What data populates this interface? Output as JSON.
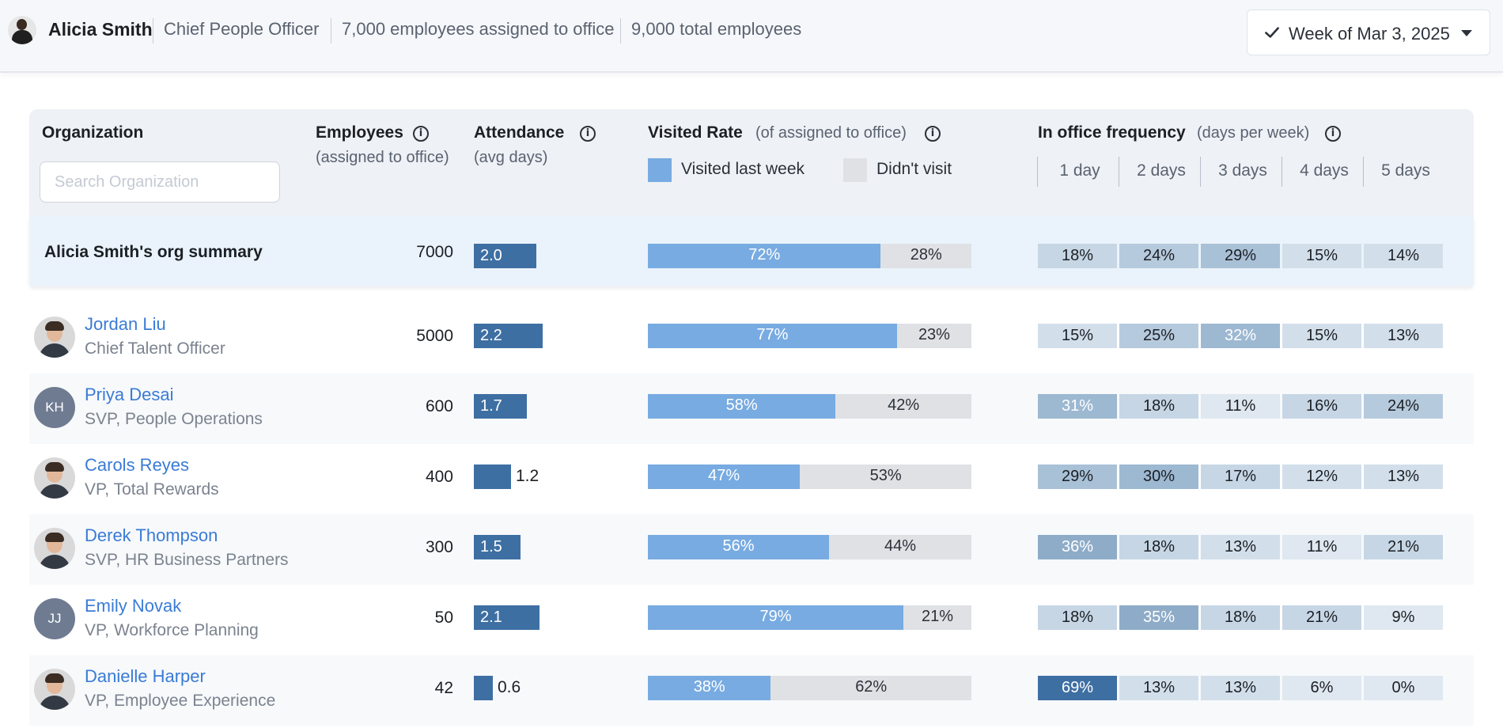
{
  "header": {
    "user_name": "Alicia Smith",
    "user_title": "Chief People Officer",
    "assigned": "7,000 employees assigned to office",
    "total": "9,000 total employees",
    "week_label": "Week of Mar 3, 2025"
  },
  "columns": {
    "organization": "Organization",
    "search_placeholder": "Search Organization",
    "employees": "Employees",
    "employees_sub": "(assigned to office)",
    "attendance": "Attendance",
    "attendance_sub": "(avg days)",
    "visited": "Visited Rate",
    "visited_sub": "(of assigned to office)",
    "legend_visited": "Visited last week",
    "legend_not": "Didn't visit",
    "frequency": "In office frequency",
    "frequency_sub": "(days per week)",
    "freq_days": [
      "1 day",
      "2 days",
      "3 days",
      "4 days",
      "5 days"
    ]
  },
  "colors": {
    "attendance_bar": "#3e6fa3",
    "visited": "#78abe1",
    "not_visited": "#dfe1e5",
    "link": "#3a7bd5"
  },
  "summary": {
    "label": "Alicia Smith's org summary",
    "employees": "7000",
    "attendance": 2.0,
    "attendance_label": "2.0",
    "visited": 72,
    "visited_label": "72%",
    "not_visited_label": "28%",
    "freq": [
      18,
      24,
      29,
      15,
      14
    ],
    "freq_labels": [
      "18%",
      "24%",
      "29%",
      "15%",
      "14%"
    ]
  },
  "rows": [
    {
      "name": "Jordan Liu",
      "title": "Chief Talent Officer",
      "avatar": "photo",
      "initials": "",
      "employees": "5000",
      "attendance": 2.2,
      "attendance_label": "2.2",
      "visited": 77,
      "visited_label": "77%",
      "not_visited_label": "23%",
      "freq": [
        15,
        25,
        32,
        15,
        13
      ],
      "freq_labels": [
        "15%",
        "25%",
        "32%",
        "15%",
        "13%"
      ]
    },
    {
      "name": "Priya Desai",
      "title": "SVP, People Operations",
      "avatar": "initials",
      "initials": "KH",
      "employees": "600",
      "attendance": 1.7,
      "attendance_label": "1.7",
      "visited": 58,
      "visited_label": "58%",
      "not_visited_label": "42%",
      "freq": [
        31,
        18,
        11,
        16,
        24
      ],
      "freq_labels": [
        "31%",
        "18%",
        "11%",
        "16%",
        "24%"
      ]
    },
    {
      "name": "Carols Reyes",
      "title": "VP, Total Rewards",
      "avatar": "photo",
      "initials": "",
      "employees": "400",
      "attendance": 1.2,
      "attendance_label": "1.2",
      "visited": 47,
      "visited_label": "47%",
      "not_visited_label": "53%",
      "freq": [
        29,
        30,
        17,
        12,
        13
      ],
      "freq_labels": [
        "29%",
        "30%",
        "17%",
        "12%",
        "13%"
      ]
    },
    {
      "name": "Derek Thompson",
      "title": "SVP, HR Business Partners",
      "avatar": "photo",
      "initials": "",
      "employees": "300",
      "attendance": 1.5,
      "attendance_label": "1.5",
      "visited": 56,
      "visited_label": "56%",
      "not_visited_label": "44%",
      "freq": [
        36,
        18,
        13,
        11,
        21
      ],
      "freq_labels": [
        "36%",
        "18%",
        "13%",
        "11%",
        "21%"
      ]
    },
    {
      "name": "Emily Novak",
      "title": "VP, Workforce Planning",
      "avatar": "initials",
      "initials": "JJ",
      "employees": "50",
      "attendance": 2.1,
      "attendance_label": "2.1",
      "visited": 79,
      "visited_label": "79%",
      "not_visited_label": "21%",
      "freq": [
        18,
        35,
        18,
        21,
        9
      ],
      "freq_labels": [
        "18%",
        "35%",
        "18%",
        "21%",
        "9%"
      ]
    },
    {
      "name": "Danielle Harper",
      "title": "VP, Employee Experience",
      "avatar": "photo",
      "initials": "",
      "employees": "42",
      "attendance": 0.6,
      "attendance_label": "0.6",
      "visited": 38,
      "visited_label": "38%",
      "not_visited_label": "62%",
      "freq": [
        69,
        13,
        13,
        6,
        0
      ],
      "freq_labels": [
        "69%",
        "13%",
        "13%",
        "6%",
        "0%"
      ]
    }
  ]
}
